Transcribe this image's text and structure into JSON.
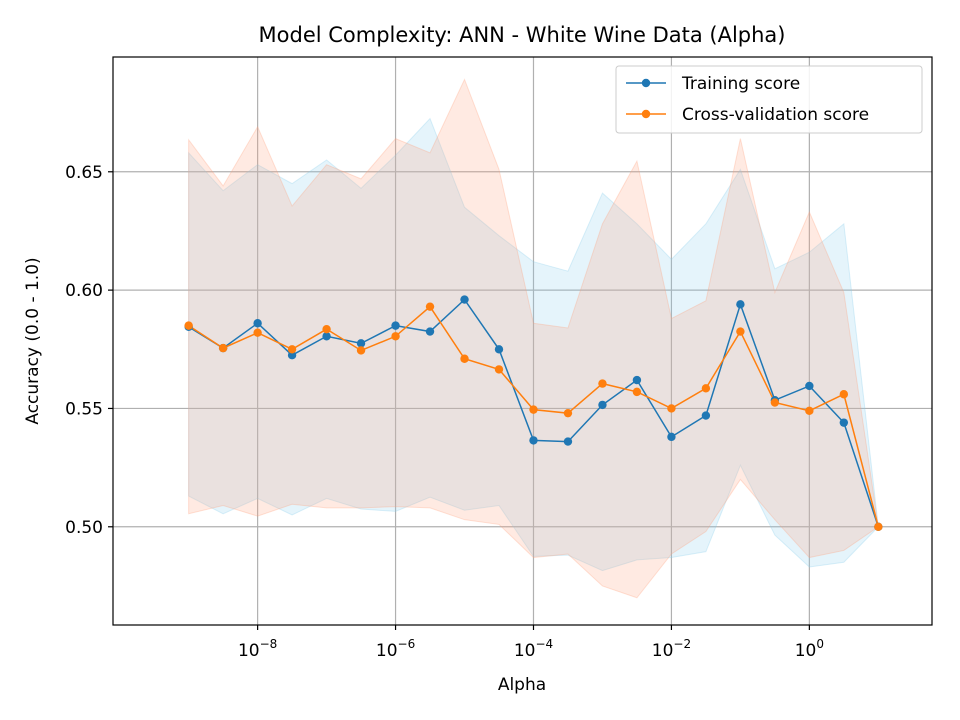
{
  "chart_data": {
    "type": "line",
    "title": "Model Complexity: ANN - White Wine Data (Alpha)",
    "xlabel": "Alpha",
    "ylabel": "Accuracy (0.0 - 1.0)",
    "x_scale": "log",
    "x_ticks": [
      {
        "value": 1e-08,
        "base": "10",
        "exp": "−8"
      },
      {
        "value": 1e-06,
        "base": "10",
        "exp": "−6"
      },
      {
        "value": 0.0001,
        "base": "10",
        "exp": "−4"
      },
      {
        "value": 0.01,
        "base": "10",
        "exp": "−2"
      },
      {
        "value": 1,
        "base": "10",
        "exp": "0"
      }
    ],
    "y_ticks": [
      {
        "value": 0.5,
        "label": "0.50"
      },
      {
        "value": 0.55,
        "label": "0.55"
      },
      {
        "value": 0.6,
        "label": "0.60"
      },
      {
        "value": 0.65,
        "label": "0.65"
      }
    ],
    "xlim": [
      8e-11,
      60
    ],
    "ylim": [
      0.4585,
      0.6985
    ],
    "grid": true,
    "legend_position": "top-right",
    "x": [
      1e-09,
      3.16e-09,
      1e-08,
      3.16e-08,
      1e-07,
      3.16e-07,
      1e-06,
      3.16e-06,
      1e-05,
      3.16e-05,
      0.0001,
      0.000316,
      0.001,
      0.00316,
      0.01,
      0.0316,
      0.1,
      0.316,
      1,
      3.16,
      10
    ],
    "series": [
      {
        "name": "Training score",
        "color": "#1f77b4",
        "band_color": "#87ceeb",
        "values": [
          0.5845,
          0.5755,
          0.586,
          0.5725,
          0.5805,
          0.5775,
          0.585,
          0.5825,
          0.596,
          0.575,
          0.5365,
          0.536,
          0.5515,
          0.562,
          0.538,
          0.547,
          0.594,
          0.5535,
          0.5595,
          0.544,
          0.5
        ],
        "upper": [
          0.658,
          0.642,
          0.653,
          0.645,
          0.655,
          0.643,
          0.657,
          0.6725,
          0.635,
          0.623,
          0.612,
          0.608,
          0.641,
          0.628,
          0.613,
          0.628,
          0.651,
          0.609,
          0.616,
          0.628,
          0.5
        ],
        "lower": [
          0.513,
          0.5055,
          0.512,
          0.505,
          0.512,
          0.5075,
          0.5065,
          0.5125,
          0.507,
          0.509,
          0.4875,
          0.488,
          0.4815,
          0.486,
          0.487,
          0.4895,
          0.526,
          0.4965,
          0.483,
          0.485,
          0.5
        ]
      },
      {
        "name": "Cross-validation score",
        "color": "#ff7f0e",
        "band_color": "#ffa07a",
        "values": [
          0.585,
          0.5755,
          0.582,
          0.575,
          0.5835,
          0.5745,
          0.5805,
          0.593,
          0.571,
          0.5665,
          0.5495,
          0.548,
          0.5605,
          0.557,
          0.55,
          0.5585,
          0.5825,
          0.5525,
          0.549,
          0.556,
          0.5
        ],
        "upper": [
          0.6635,
          0.644,
          0.669,
          0.6355,
          0.653,
          0.647,
          0.664,
          0.658,
          0.689,
          0.651,
          0.586,
          0.584,
          0.628,
          0.6545,
          0.588,
          0.5955,
          0.664,
          0.599,
          0.633,
          0.599,
          0.5
        ],
        "lower": [
          0.5055,
          0.509,
          0.5045,
          0.5095,
          0.508,
          0.508,
          0.5085,
          0.508,
          0.503,
          0.501,
          0.487,
          0.4885,
          0.475,
          0.47,
          0.4885,
          0.498,
          0.52,
          0.503,
          0.487,
          0.49,
          0.5
        ]
      }
    ]
  }
}
